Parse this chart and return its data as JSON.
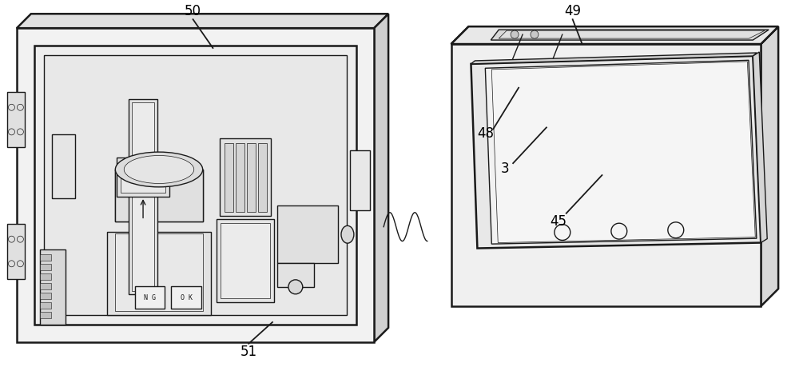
{
  "background_color": "#ffffff",
  "line_color": "#1a1a1a",
  "fig_width": 10.0,
  "fig_height": 4.59
}
